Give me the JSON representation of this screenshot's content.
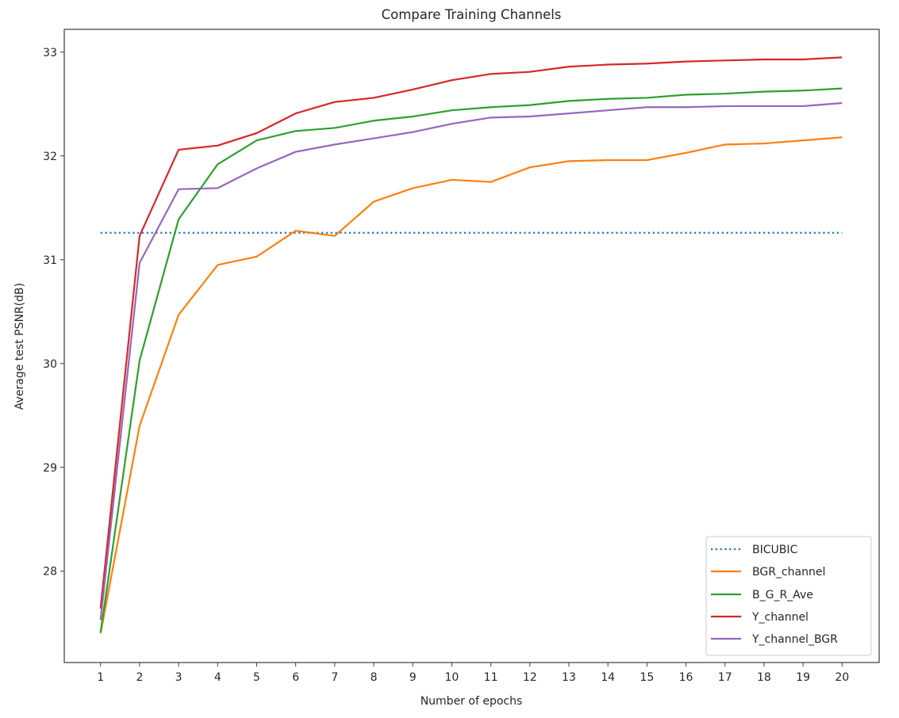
{
  "chart_data": {
    "type": "line",
    "title": "Compare Training Channels",
    "xlabel": "Number of epochs",
    "ylabel": "Average test PSNR(dB)",
    "x": [
      1,
      2,
      3,
      4,
      5,
      6,
      7,
      8,
      9,
      10,
      11,
      12,
      13,
      14,
      15,
      16,
      17,
      18,
      19,
      20
    ],
    "xticks": [
      1,
      2,
      3,
      4,
      5,
      6,
      7,
      8,
      9,
      10,
      11,
      12,
      13,
      14,
      15,
      16,
      17,
      18,
      19,
      20
    ],
    "yticks": [
      28,
      29,
      30,
      31,
      32,
      33
    ],
    "xlim": [
      0.07,
      20.95
    ],
    "ylim": [
      27.12,
      33.22
    ],
    "grid": false,
    "legend_position": "lower right",
    "series": [
      {
        "name": "BICUBIC",
        "color": "#1f77b4",
        "style": "dotted",
        "values": [
          31.26,
          31.26,
          31.26,
          31.26,
          31.26,
          31.26,
          31.26,
          31.26,
          31.26,
          31.26,
          31.26,
          31.26,
          31.26,
          31.26,
          31.26,
          31.26,
          31.26,
          31.26,
          31.26,
          31.26
        ]
      },
      {
        "name": "BGR_channel",
        "color": "#ff7f0e",
        "style": "solid",
        "values": [
          27.4,
          29.4,
          30.47,
          30.95,
          31.03,
          31.28,
          31.23,
          31.56,
          31.69,
          31.77,
          31.75,
          31.89,
          31.95,
          31.96,
          31.96,
          32.03,
          32.11,
          32.12,
          32.15,
          32.18
        ]
      },
      {
        "name": "B_G_R_Ave",
        "color": "#2ca02c",
        "style": "solid",
        "values": [
          27.41,
          30.03,
          31.39,
          31.92,
          32.15,
          32.24,
          32.27,
          32.34,
          32.38,
          32.44,
          32.47,
          32.49,
          32.53,
          32.55,
          32.56,
          32.59,
          32.6,
          32.62,
          32.63,
          32.65
        ]
      },
      {
        "name": "Y_channel",
        "color": "#d62728",
        "style": "solid",
        "values": [
          27.64,
          31.23,
          32.06,
          32.1,
          32.22,
          32.41,
          32.52,
          32.56,
          32.64,
          32.73,
          32.79,
          32.81,
          32.86,
          32.88,
          32.89,
          32.91,
          32.92,
          32.93,
          32.93,
          32.95
        ]
      },
      {
        "name": "Y_channel_BGR",
        "color": "#9467bd",
        "style": "solid",
        "values": [
          27.53,
          30.97,
          31.68,
          31.69,
          31.88,
          32.04,
          32.11,
          32.17,
          32.23,
          32.31,
          32.37,
          32.38,
          32.41,
          32.44,
          32.47,
          32.47,
          32.48,
          32.48,
          32.48,
          32.51
        ]
      }
    ]
  }
}
